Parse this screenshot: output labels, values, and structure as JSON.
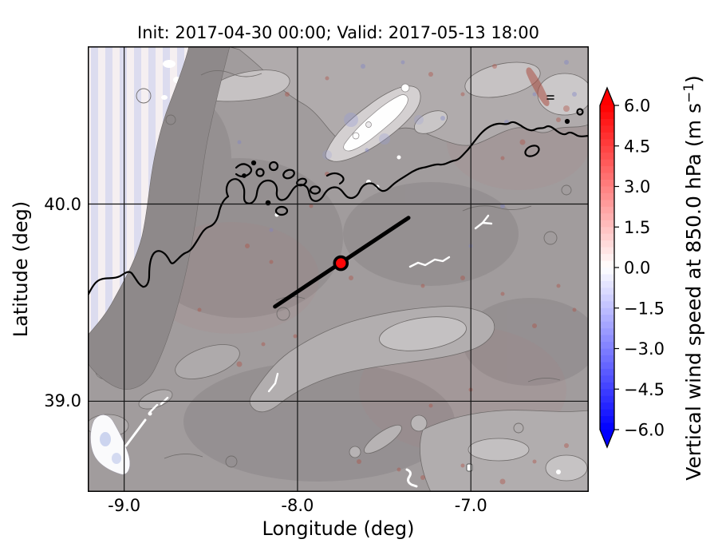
{
  "figure": {
    "title": "Init: 2017-04-30 00:00; Valid: 2017-05-13 18:00",
    "xlabel": "Longitude (deg)",
    "ylabel": "Latitude (deg)"
  },
  "chart_data": {
    "type": "heatmap",
    "subtype": "map-with-shaded-terrain",
    "title": "Init: 2017-04-30 00:00; Valid: 2017-05-13 18:00",
    "init_time": "2017-04-30 00:00",
    "valid_time": "2017-05-13 18:00",
    "xlabel": "Longitude (deg)",
    "ylabel": "Latitude (deg)",
    "grid": true,
    "x_ticks": {
      "values": [
        -9.0,
        -8.0,
        -7.0
      ],
      "labels": [
        "-9.0",
        "-8.0",
        "-7.0"
      ]
    },
    "y_ticks": {
      "values": [
        40.0,
        39.0
      ],
      "labels": [
        "40.0",
        "39.0"
      ]
    },
    "extent": {
      "lon_min": -9.21,
      "lon_max": -6.32,
      "lat_min": 38.54,
      "lat_max": 40.8
    },
    "field": "Vertical wind speed at 850.0 hPa",
    "colorbar": {
      "label_main": "Vertical wind speed at 850.0 hPa (m s",
      "label_sup": "−1",
      "label_close": ")",
      "vmin": -6.0,
      "vmax": 6.0,
      "step": 0.25,
      "cmap": "blue-white-red",
      "extend": "both",
      "ticks": {
        "values": [
          6.0,
          4.5,
          3.0,
          1.5,
          0.0,
          -1.5,
          -3.0,
          -4.5,
          -6.0
        ],
        "labels": [
          "6.0",
          "4.5",
          "3.0",
          "1.5",
          "0.0",
          "−1.5",
          "−3.0",
          "−4.5",
          "−6.0"
        ]
      },
      "arrow_top_color": "#ff0000",
      "arrow_bottom_color": "#0000ff"
    },
    "marker": {
      "lon": -7.75,
      "lat": 39.7,
      "fill": "#ff0707",
      "edge": "#000000"
    },
    "transect_line": {
      "lon_start": -8.13,
      "lat_start": 39.48,
      "lon_end": -7.36,
      "lat_end": 39.93,
      "color": "#000000"
    }
  }
}
